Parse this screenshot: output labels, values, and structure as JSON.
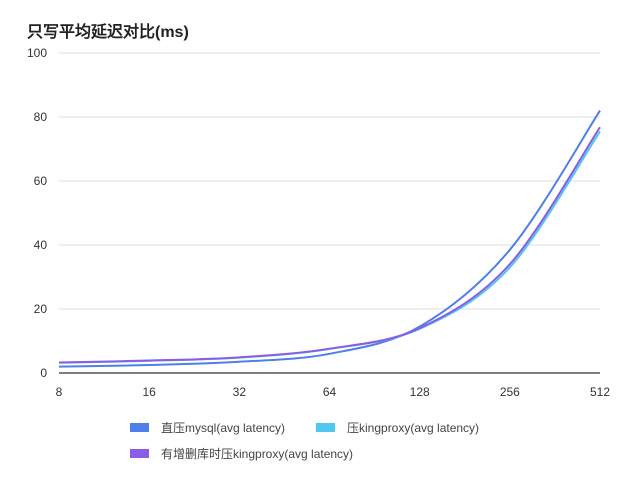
{
  "chart_data": {
    "type": "line",
    "title": "只写平均延迟对比(ms)",
    "xlabel": "",
    "ylabel": "",
    "categories": [
      "8",
      "16",
      "32",
      "64",
      "128",
      "256",
      "512"
    ],
    "ylim": [
      0,
      100
    ],
    "yticks": [
      0,
      20,
      40,
      60,
      80,
      100
    ],
    "grid": true,
    "legend_position": "bottom",
    "series": [
      {
        "name": "直压mysql(avg latency)",
        "color": "#4f7fe8",
        "values": [
          2.0,
          2.5,
          3.5,
          6.0,
          14.5,
          38.5,
          82.0
        ]
      },
      {
        "name": "压kingproxy(avg latency)",
        "color": "#4fc8f0",
        "values": [
          3.2,
          3.8,
          4.8,
          7.5,
          13.8,
          33.0,
          75.5
        ]
      },
      {
        "name": "有增删库时压kingproxy(avg latency)",
        "color": "#8b5ce6",
        "values": [
          3.3,
          3.9,
          4.9,
          7.6,
          14.0,
          34.0,
          76.8
        ]
      }
    ]
  }
}
